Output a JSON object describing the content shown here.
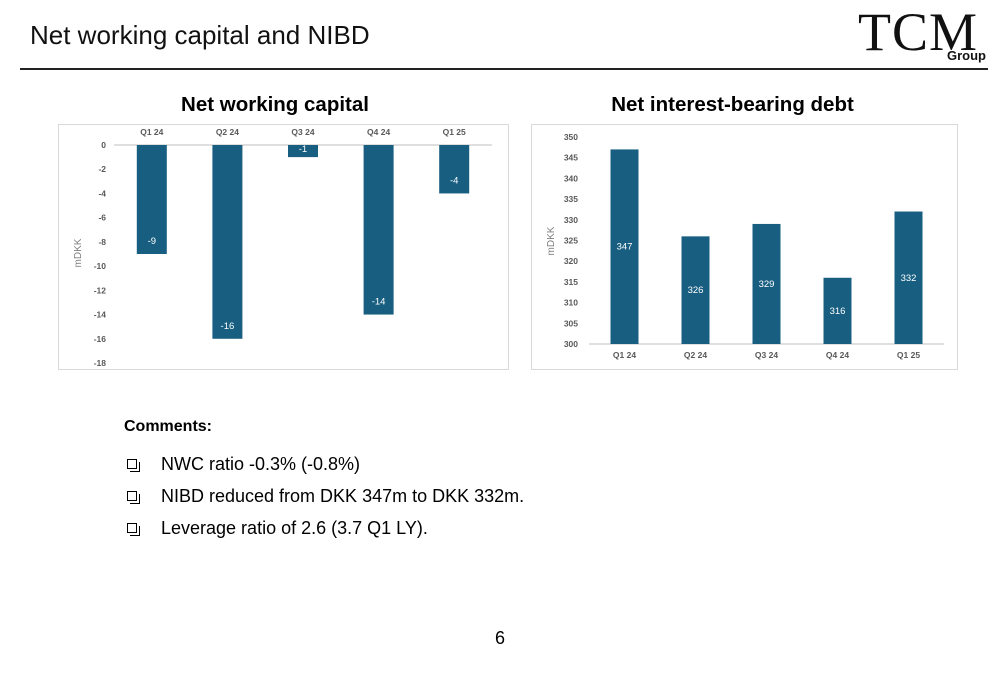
{
  "slide": {
    "title": "Net working capital and NIBD",
    "page_number": "6"
  },
  "logo": {
    "main": "TCM",
    "sub": "Group"
  },
  "chart_data": [
    {
      "type": "bar",
      "title": "Net working capital",
      "ylabel": "mDKK",
      "xlabel": "",
      "categories": [
        "Q1 24",
        "Q2 24",
        "Q3 24",
        "Q4 24",
        "Q1 25"
      ],
      "values": [
        -9,
        -16,
        -1,
        -14,
        -4
      ],
      "value_labels": [
        "-9",
        "-16",
        "-1",
        "-14",
        "-4"
      ],
      "ylim": [
        -18,
        0
      ],
      "y_ticks": [
        0,
        -2,
        -4,
        -6,
        -8,
        -10,
        -12,
        -14,
        -16,
        -18
      ],
      "x_axis_position": "top",
      "grid": false,
      "bar_color": "#175e80"
    },
    {
      "type": "bar",
      "title": "Net interest-bearing debt",
      "ylabel": "mDKK",
      "xlabel": "",
      "categories": [
        "Q1 24",
        "Q2 24",
        "Q3 24",
        "Q4 24",
        "Q1 25"
      ],
      "values": [
        347,
        326,
        329,
        316,
        332
      ],
      "value_labels": [
        "347",
        "326",
        "329",
        "316",
        "332"
      ],
      "ylim": [
        300,
        350
      ],
      "y_ticks": [
        300,
        305,
        310,
        315,
        320,
        325,
        330,
        335,
        340,
        345,
        350
      ],
      "x_axis_position": "bottom",
      "grid": false,
      "bar_color": "#175e80"
    }
  ],
  "comments": {
    "heading": "Comments:",
    "items": [
      "NWC ratio -0.3% (-0.8%)",
      "NIBD reduced from DKK 347m to DKK 332m.",
      "Leverage ratio of 2.6 (3.7 Q1 LY)."
    ]
  }
}
